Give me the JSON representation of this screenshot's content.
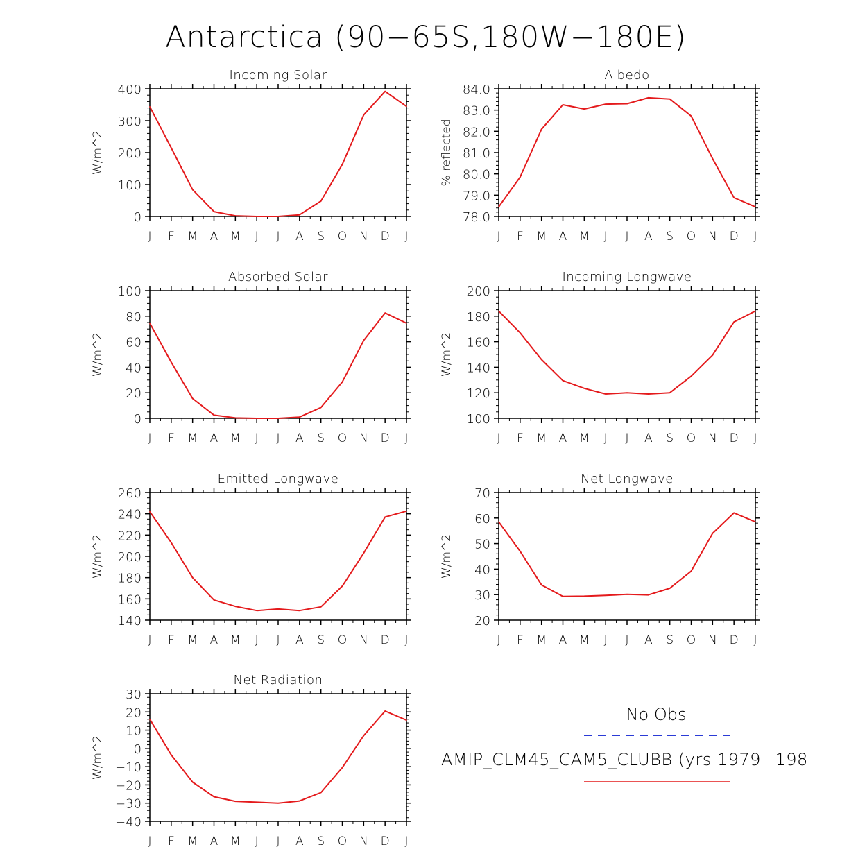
{
  "figure": {
    "title": "Antarctica (90−65S,180W−180E)",
    "months": [
      "J",
      "F",
      "M",
      "A",
      "M",
      "J",
      "J",
      "A",
      "S",
      "O",
      "N",
      "D",
      "J"
    ],
    "line_color": "#e41a1c",
    "obs_color": "#2b3bd6"
  },
  "legend": {
    "obs_label": "No Obs",
    "model_label": "AMIP_CLM45_CAM5_CLUBB (yrs 1979−198"
  },
  "chart_data": [
    {
      "type": "line",
      "title": "Incoming Solar",
      "xlabel": "",
      "ylabel": "W/m^2",
      "categories": [
        "J",
        "F",
        "M",
        "A",
        "M",
        "J",
        "J",
        "A",
        "S",
        "O",
        "N",
        "D",
        "J"
      ],
      "ylim": [
        0,
        400
      ],
      "yticks": [
        0,
        100,
        200,
        300,
        400
      ],
      "ytick_labels": [
        "0",
        "100",
        "200",
        "300",
        "400"
      ],
      "yminor": 4,
      "values": [
        344,
        215,
        84,
        15,
        2,
        0,
        0,
        5,
        48,
        163,
        318,
        392,
        345
      ]
    },
    {
      "type": "line",
      "title": "Albedo",
      "xlabel": "",
      "ylabel": "% reflected",
      "categories": [
        "J",
        "F",
        "M",
        "A",
        "M",
        "J",
        "J",
        "A",
        "S",
        "O",
        "N",
        "D",
        "J"
      ],
      "ylim": [
        78,
        84
      ],
      "yticks": [
        78,
        79,
        80,
        81,
        82,
        83,
        84
      ],
      "ytick_labels": [
        "78.0",
        "79.0",
        "80.0",
        "81.0",
        "82.0",
        "83.0",
        "84.0"
      ],
      "yminor": 4,
      "values": [
        78.45,
        79.85,
        82.1,
        83.25,
        83.05,
        83.28,
        83.3,
        83.58,
        83.52,
        82.72,
        80.72,
        78.88,
        78.45
      ]
    },
    {
      "type": "line",
      "title": "Absorbed Solar",
      "xlabel": "",
      "ylabel": "W/m^2",
      "categories": [
        "J",
        "F",
        "M",
        "A",
        "M",
        "J",
        "J",
        "A",
        "S",
        "O",
        "N",
        "D",
        "J"
      ],
      "ylim": [
        0,
        100
      ],
      "yticks": [
        0,
        20,
        40,
        60,
        80,
        100
      ],
      "ytick_labels": [
        "0",
        "20",
        "40",
        "60",
        "80",
        "100"
      ],
      "yminor": 3,
      "values": [
        74.5,
        44,
        15.5,
        2.5,
        0.3,
        0,
        0,
        1,
        8.5,
        28.5,
        61,
        82.5,
        74.5
      ]
    },
    {
      "type": "line",
      "title": "Incoming Longwave",
      "xlabel": "",
      "ylabel": "W/m^2",
      "categories": [
        "J",
        "F",
        "M",
        "A",
        "M",
        "J",
        "J",
        "A",
        "S",
        "O",
        "N",
        "D",
        "J"
      ],
      "ylim": [
        100,
        200
      ],
      "yticks": [
        100,
        120,
        140,
        160,
        180,
        200
      ],
      "ytick_labels": [
        "100",
        "120",
        "140",
        "160",
        "180",
        "200"
      ],
      "yminor": 3,
      "values": [
        184,
        167,
        146,
        129.5,
        123.5,
        119,
        120,
        119,
        120,
        133,
        149.5,
        175.5,
        184
      ]
    },
    {
      "type": "line",
      "title": "Emitted Longwave",
      "xlabel": "",
      "ylabel": "W/m^2",
      "categories": [
        "J",
        "F",
        "M",
        "A",
        "M",
        "J",
        "J",
        "A",
        "S",
        "O",
        "N",
        "D",
        "J"
      ],
      "ylim": [
        140,
        260
      ],
      "yticks": [
        140,
        160,
        180,
        200,
        220,
        240,
        260
      ],
      "ytick_labels": [
        "140",
        "160",
        "180",
        "200",
        "220",
        "240",
        "260"
      ],
      "yminor": 3,
      "values": [
        242,
        213,
        180,
        159,
        153,
        149,
        150.5,
        149,
        152.5,
        172,
        203,
        237,
        242.5
      ]
    },
    {
      "type": "line",
      "title": "Net Longwave",
      "xlabel": "",
      "ylabel": "W/m^2",
      "categories": [
        "J",
        "F",
        "M",
        "A",
        "M",
        "J",
        "J",
        "A",
        "S",
        "O",
        "N",
        "D",
        "J"
      ],
      "ylim": [
        20,
        70
      ],
      "yticks": [
        20,
        30,
        40,
        50,
        60,
        70
      ],
      "ytick_labels": [
        "20",
        "30",
        "40",
        "50",
        "60",
        "70"
      ],
      "yminor": 4,
      "values": [
        58.5,
        47,
        33.8,
        29.3,
        29.4,
        29.7,
        30.1,
        29.9,
        32.5,
        39.2,
        54,
        62,
        58.5
      ]
    },
    {
      "type": "line",
      "title": "Net Radiation",
      "xlabel": "",
      "ylabel": "W/m^2",
      "categories": [
        "J",
        "F",
        "M",
        "A",
        "M",
        "J",
        "J",
        "A",
        "S",
        "O",
        "N",
        "D",
        "J"
      ],
      "ylim": [
        -40,
        30
      ],
      "yticks": [
        -40,
        -30,
        -20,
        -10,
        0,
        10,
        20,
        30
      ],
      "ytick_labels": [
        "−40",
        "−30",
        "−20",
        "−10",
        "0",
        "10",
        "20",
        "30"
      ],
      "yminor": 4,
      "values": [
        16,
        -3.5,
        -18.5,
        -26.5,
        -29,
        -29.5,
        -30,
        -28.8,
        -24.2,
        -10.5,
        7,
        20.5,
        15.5
      ]
    }
  ]
}
